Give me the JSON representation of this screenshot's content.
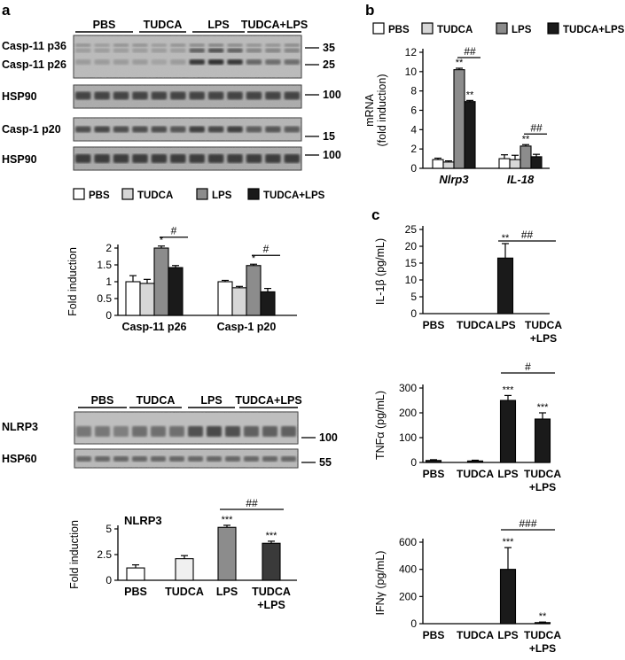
{
  "panels": {
    "a": "a",
    "b": "b",
    "c": "c"
  },
  "legend": [
    "PBS",
    "TUDCA",
    "LPS",
    "TUDCA+LPS"
  ],
  "colors": {
    "PBS": "#ffffff",
    "TUDCA": "#d7d7d7",
    "LPS": "#8c8c8c",
    "TUDCA+LPS": "#1a1a1a",
    "NLRP3_TUDCA": "#f0f0f0",
    "NLRP3_TUDCA_LPS": "#3a3a3a"
  },
  "blot1": {
    "groups": [
      "PBS",
      "TUDCA",
      "LPS",
      "TUDCA+LPS"
    ],
    "rows": [
      {
        "labels": [
          "Casp-11 p36",
          "Casp-11 p26"
        ],
        "markers": [
          "35",
          "25"
        ]
      },
      {
        "labels": [
          "HSP90"
        ],
        "markers": [
          "100"
        ]
      },
      {
        "labels": [
          "Casp-1 p20"
        ],
        "markers": [
          "15"
        ]
      },
      {
        "labels": [
          "HSP90"
        ],
        "markers": [
          "100"
        ]
      }
    ]
  },
  "blot2": {
    "groups": [
      "PBS",
      "TUDCA",
      "LPS",
      "TUDCA+LPS"
    ],
    "rows": [
      {
        "labels": [
          "NLRP3"
        ],
        "markers": [
          "100"
        ]
      },
      {
        "labels": [
          "HSP60"
        ],
        "markers": [
          "55"
        ]
      }
    ]
  },
  "chart_data": [
    {
      "id": "a_casp",
      "type": "bar",
      "ylabel": "Fold induction",
      "ylim": [
        0,
        2
      ],
      "yticks": [
        "0",
        "0.5",
        "1",
        "1.5",
        "2"
      ],
      "categories": [
        "Casp-11 p26",
        "Casp-1 p20"
      ],
      "series": [
        {
          "name": "PBS",
          "values": [
            1.0,
            1.0
          ],
          "err": [
            0.18,
            0.04
          ]
        },
        {
          "name": "TUDCA",
          "values": [
            0.95,
            0.82
          ],
          "err": [
            0.12,
            0.04
          ]
        },
        {
          "name": "LPS",
          "values": [
            2.0,
            1.48
          ],
          "err": [
            0.06,
            0.04
          ]
        },
        {
          "name": "TUDCA+LPS",
          "values": [
            1.42,
            0.7
          ],
          "err": [
            0.06,
            0.1
          ]
        }
      ],
      "annotations": [
        {
          "text": "*",
          "category": 0,
          "series": 2
        },
        {
          "text": "#",
          "category": 0,
          "between": [
            2,
            3
          ]
        },
        {
          "text": "*",
          "category": 1,
          "series": 2
        },
        {
          "text": "#",
          "category": 1,
          "between": [
            2,
            3
          ]
        }
      ]
    },
    {
      "id": "a_nlrp3",
      "type": "bar",
      "title": "NLRP3",
      "ylabel": "Fold induction",
      "ylim": [
        0,
        5
      ],
      "yticks": [
        "0",
        "2.5",
        "5"
      ],
      "categories": [
        "PBS",
        "TUDCA",
        "LPS",
        "TUDCA\n+LPS"
      ],
      "values": [
        1.2,
        2.1,
        5.15,
        3.6
      ],
      "err": [
        0.3,
        0.3,
        0.2,
        0.2
      ],
      "annotations": [
        {
          "text": "***",
          "bar": 2
        },
        {
          "text": "***",
          "bar": 3
        },
        {
          "text": "##",
          "between": [
            2,
            3
          ]
        }
      ]
    },
    {
      "id": "b_mrna",
      "type": "bar",
      "ylabel": "mRNA\n(fold induction)",
      "ylim": [
        0,
        12
      ],
      "yticks": [
        "0",
        "2",
        "4",
        "6",
        "8",
        "10",
        "12"
      ],
      "categories": [
        "Nlrp3",
        "IL-18"
      ],
      "series": [
        {
          "name": "PBS",
          "values": [
            0.9,
            1.0
          ],
          "err": [
            0.15,
            0.4
          ]
        },
        {
          "name": "TUDCA",
          "values": [
            0.65,
            0.9
          ],
          "err": [
            0.12,
            0.45
          ]
        },
        {
          "name": "LPS",
          "values": [
            10.2,
            2.3
          ],
          "err": [
            0.15,
            0.15
          ]
        },
        {
          "name": "TUDCA+LPS",
          "values": [
            6.9,
            1.2
          ],
          "err": [
            0.12,
            0.25
          ]
        }
      ],
      "annotations": [
        {
          "text": "**",
          "category": 0,
          "series": 2
        },
        {
          "text": "**",
          "category": 0,
          "series": 3
        },
        {
          "text": "##",
          "category": 0,
          "between": [
            2,
            3
          ]
        },
        {
          "text": "**",
          "category": 1,
          "series": 2
        },
        {
          "text": "##",
          "category": 1,
          "between": [
            2,
            3
          ]
        }
      ]
    },
    {
      "id": "c_il1b",
      "type": "bar",
      "ylabel": "IL-1β (pg/mL)",
      "ylim": [
        0,
        25
      ],
      "yticks": [
        "0",
        "5",
        "10",
        "15",
        "20",
        "25"
      ],
      "categories": [
        "PBS",
        "TUDCA",
        "LPS",
        "TUDCA\n+LPS"
      ],
      "values": [
        0,
        0,
        16.5,
        0
      ],
      "err": [
        0,
        0,
        4.3,
        0
      ],
      "annotations": [
        {
          "text": "**",
          "bar": 2
        },
        {
          "text": "##",
          "between": [
            2,
            3
          ]
        }
      ]
    },
    {
      "id": "c_tnfa",
      "type": "bar",
      "ylabel": "TNFα (pg/mL)",
      "ylim": [
        0,
        300
      ],
      "yticks": [
        "0",
        "100",
        "200",
        "300"
      ],
      "categories": [
        "PBS",
        "TUDCA",
        "LPS",
        "TUDCA\n+LPS"
      ],
      "values": [
        8,
        6,
        250,
        175
      ],
      "err": [
        3,
        3,
        20,
        25
      ],
      "annotations": [
        {
          "text": "***",
          "bar": 2
        },
        {
          "text": "***",
          "bar": 3
        },
        {
          "text": "#",
          "between": [
            2,
            3
          ]
        }
      ]
    },
    {
      "id": "c_ifng",
      "type": "bar",
      "ylabel": "IFNγ (pg/mL)",
      "ylim": [
        0,
        600
      ],
      "yticks": [
        "0",
        "200",
        "400",
        "600"
      ],
      "categories": [
        "PBS",
        "TUDCA",
        "LPS",
        "TUDCA\n+LPS"
      ],
      "values": [
        0,
        0,
        400,
        8
      ],
      "err": [
        0,
        0,
        160,
        4
      ],
      "annotations": [
        {
          "text": "***",
          "bar": 2
        },
        {
          "text": "**",
          "bar": 3
        },
        {
          "text": "###",
          "between": [
            2,
            3
          ]
        }
      ]
    }
  ]
}
